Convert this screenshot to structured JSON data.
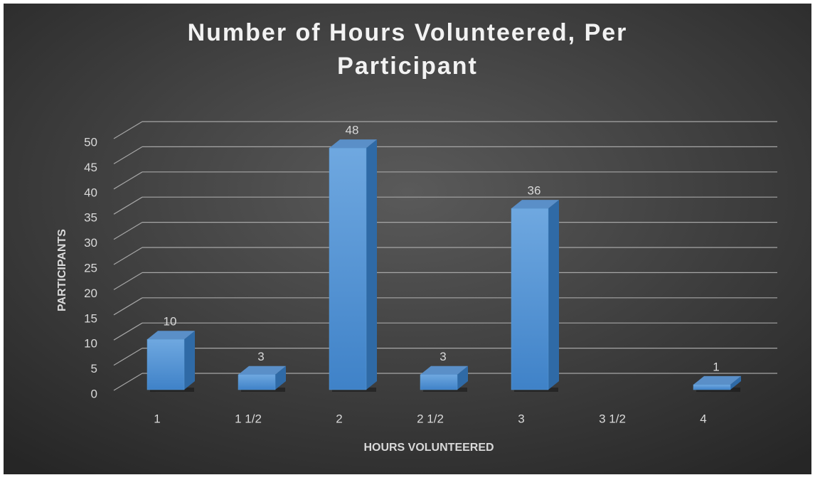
{
  "chart_data": {
    "type": "bar",
    "title": "Number of Hours Volunteered, Per Participant",
    "x_label": "HOURS VOLUNTEERED",
    "y_label": "PARTICIPANTS",
    "categories": [
      "1",
      "1 1/2",
      "2",
      "2 1/2",
      "3",
      "3 1/2",
      "4"
    ],
    "values": [
      10,
      3,
      48,
      3,
      36,
      null,
      1
    ],
    "color": "#5b9bd5",
    "ylim": [
      0,
      50
    ],
    "yticks": [
      0,
      5,
      10,
      15,
      20,
      25,
      30,
      35,
      40,
      45,
      50
    ],
    "grid": true
  }
}
